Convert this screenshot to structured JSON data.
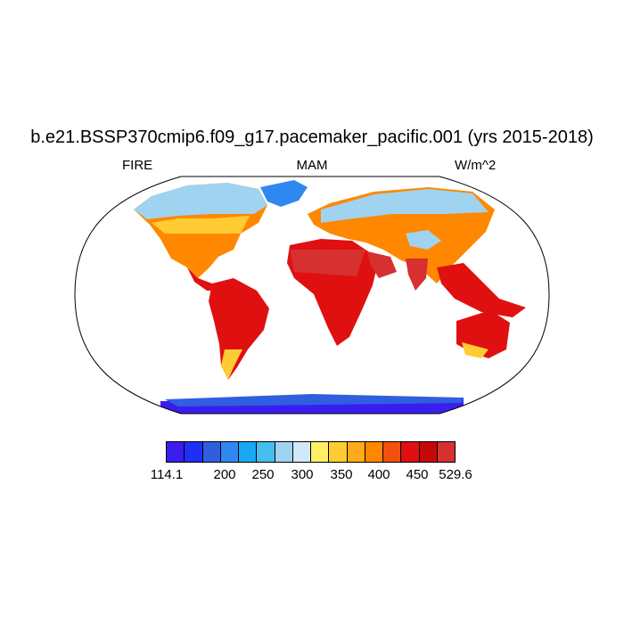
{
  "title": "b.e21.BSSP370cmip6.f09_g17.pacemaker_pacific.001 (yrs 2015-2018)",
  "left_string": "FIRE",
  "center_string": "MAM",
  "right_string": "W/m^2",
  "colorbar": {
    "colors": [
      "#3a1ef0",
      "#1f2ff5",
      "#2f5fe0",
      "#2f88f0",
      "#1aa8f5",
      "#45bdee",
      "#9fd3f0",
      "#cfe9f7",
      "#fff066",
      "#ffcc33",
      "#ffaa1a",
      "#ff8800",
      "#f05010",
      "#e01010",
      "#c80808",
      "#d63030"
    ],
    "labels": [
      "114.1",
      "200",
      "250",
      "300",
      "350",
      "400",
      "450",
      "529.6"
    ]
  },
  "legend_colors": {
    "ocean": "#ffffff",
    "land_outline": "#000000"
  }
}
